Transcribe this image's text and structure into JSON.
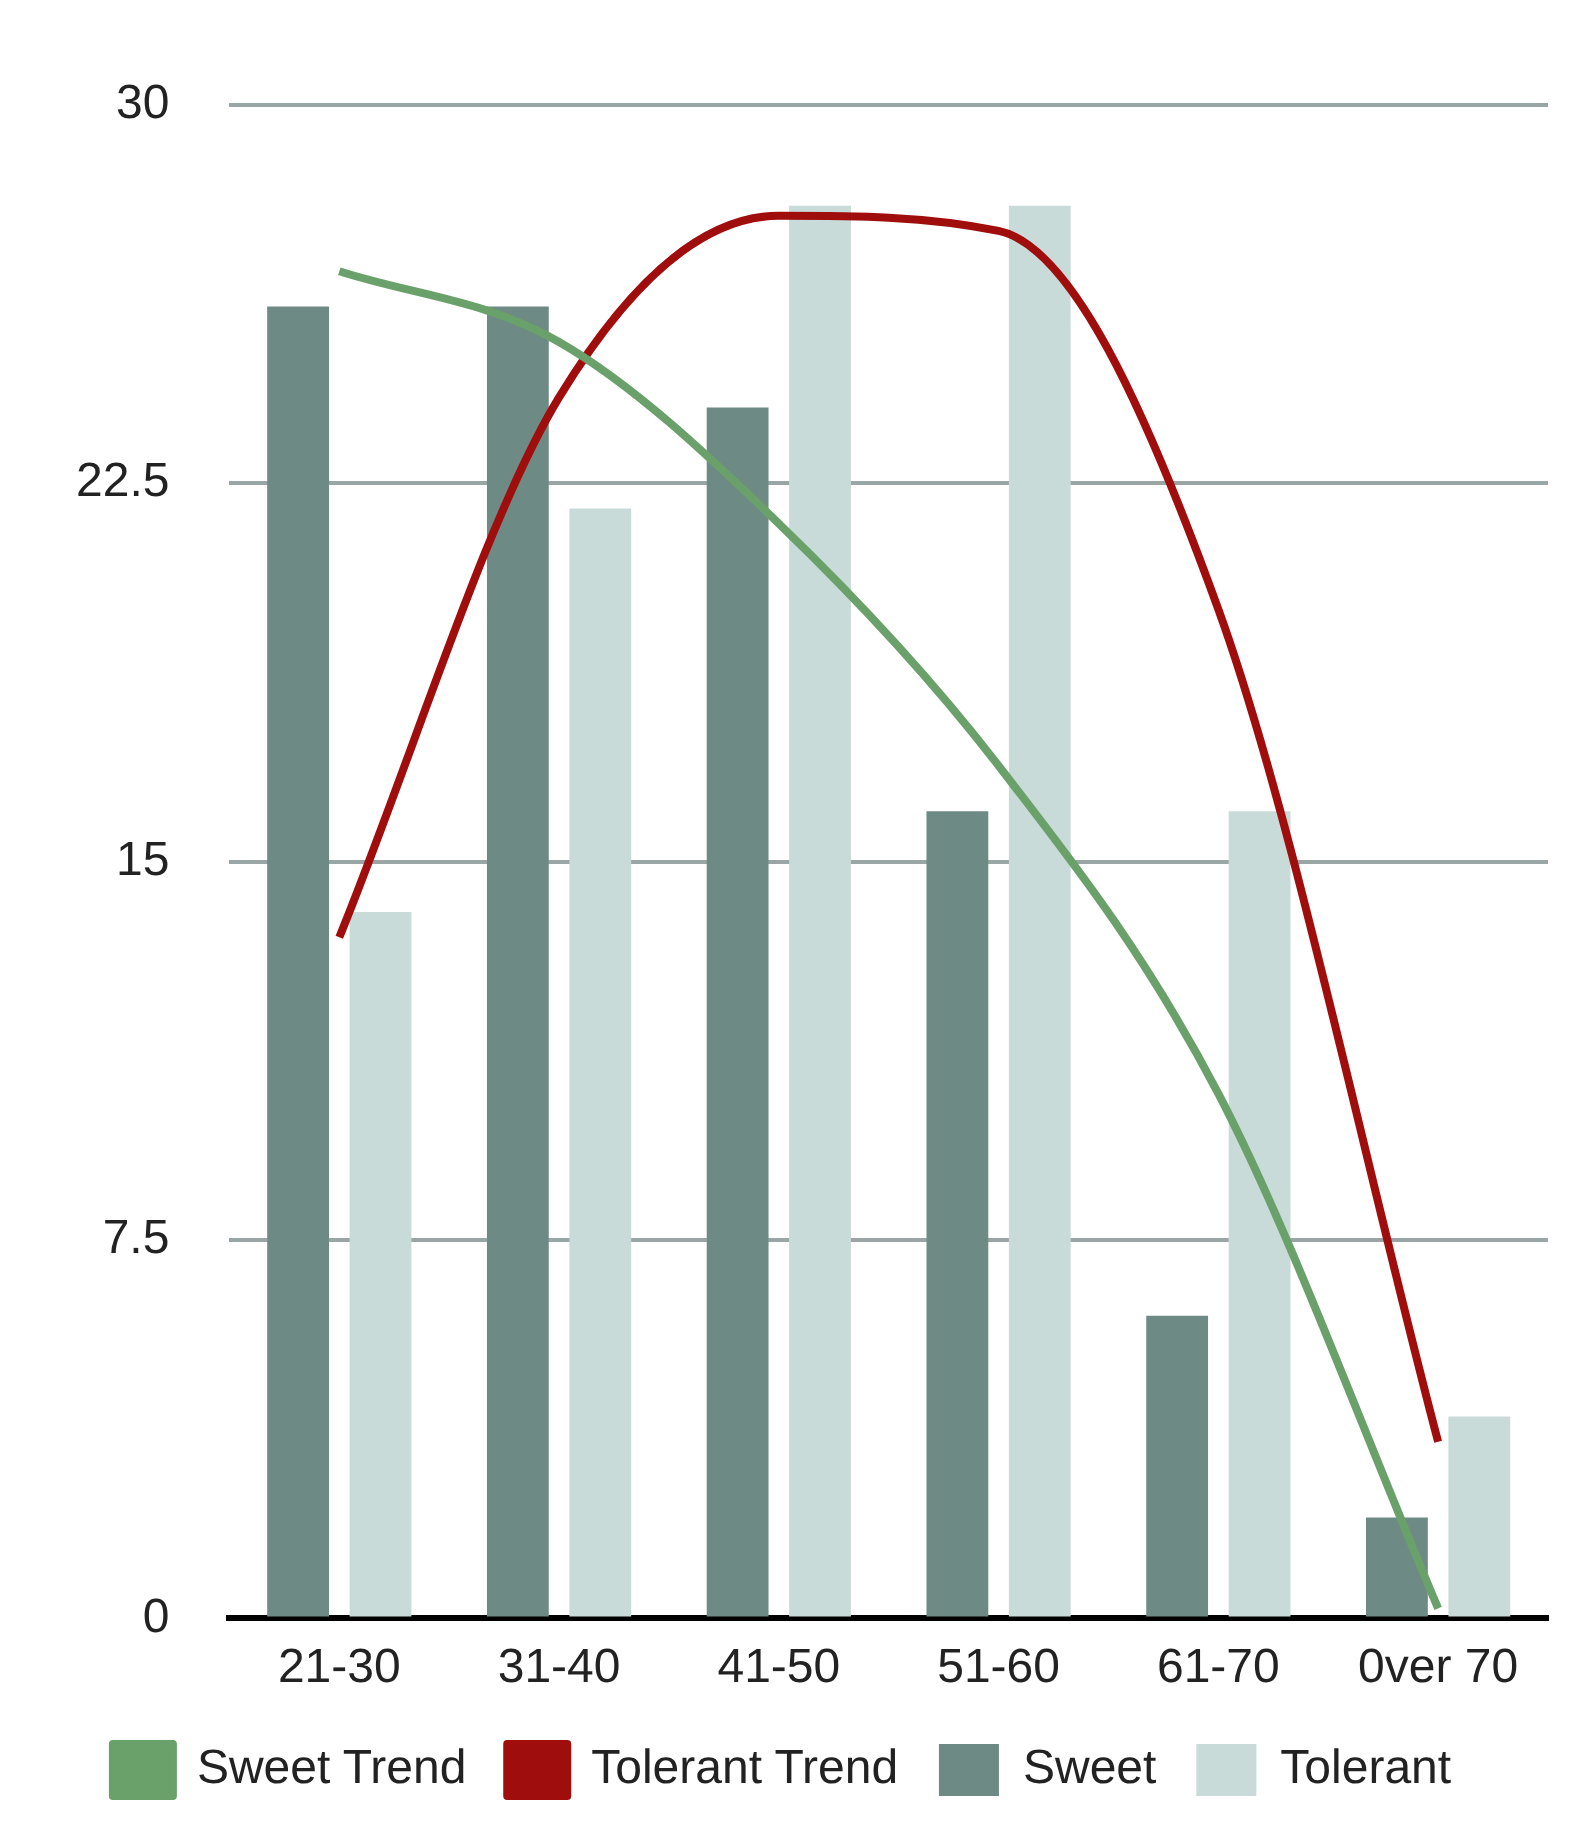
{
  "chart_data": {
    "type": "bar",
    "categories": [
      "21-30",
      "31-40",
      "41-50",
      "51-60",
      "61-70",
      "0ver 70"
    ],
    "series": [
      {
        "name": "Sweet",
        "color": "#6e8a85",
        "values": [
          26,
          26,
          24,
          16,
          6,
          2
        ]
      },
      {
        "name": "Tolerant",
        "color": "#c9dbd8",
        "values": [
          14,
          22,
          28,
          28,
          16,
          4
        ]
      },
      {
        "name": "Sweet Trend",
        "type": "line",
        "color": "#6aa06a",
        "values": [
          26.7,
          25.3,
          21.7,
          16.9,
          10.4,
          0.2
        ]
      },
      {
        "name": "Tolerant Trend",
        "type": "line",
        "color": "#a00d0d",
        "values": [
          13.5,
          24.2,
          27.8,
          27.5,
          20,
          3.5
        ]
      }
    ],
    "ylim": [
      0,
      30
    ],
    "yticks": [
      0,
      7.5,
      15,
      22.5,
      30
    ],
    "grid": "y",
    "legend": "bottom",
    "marker": "none",
    "line_style": "solid"
  }
}
